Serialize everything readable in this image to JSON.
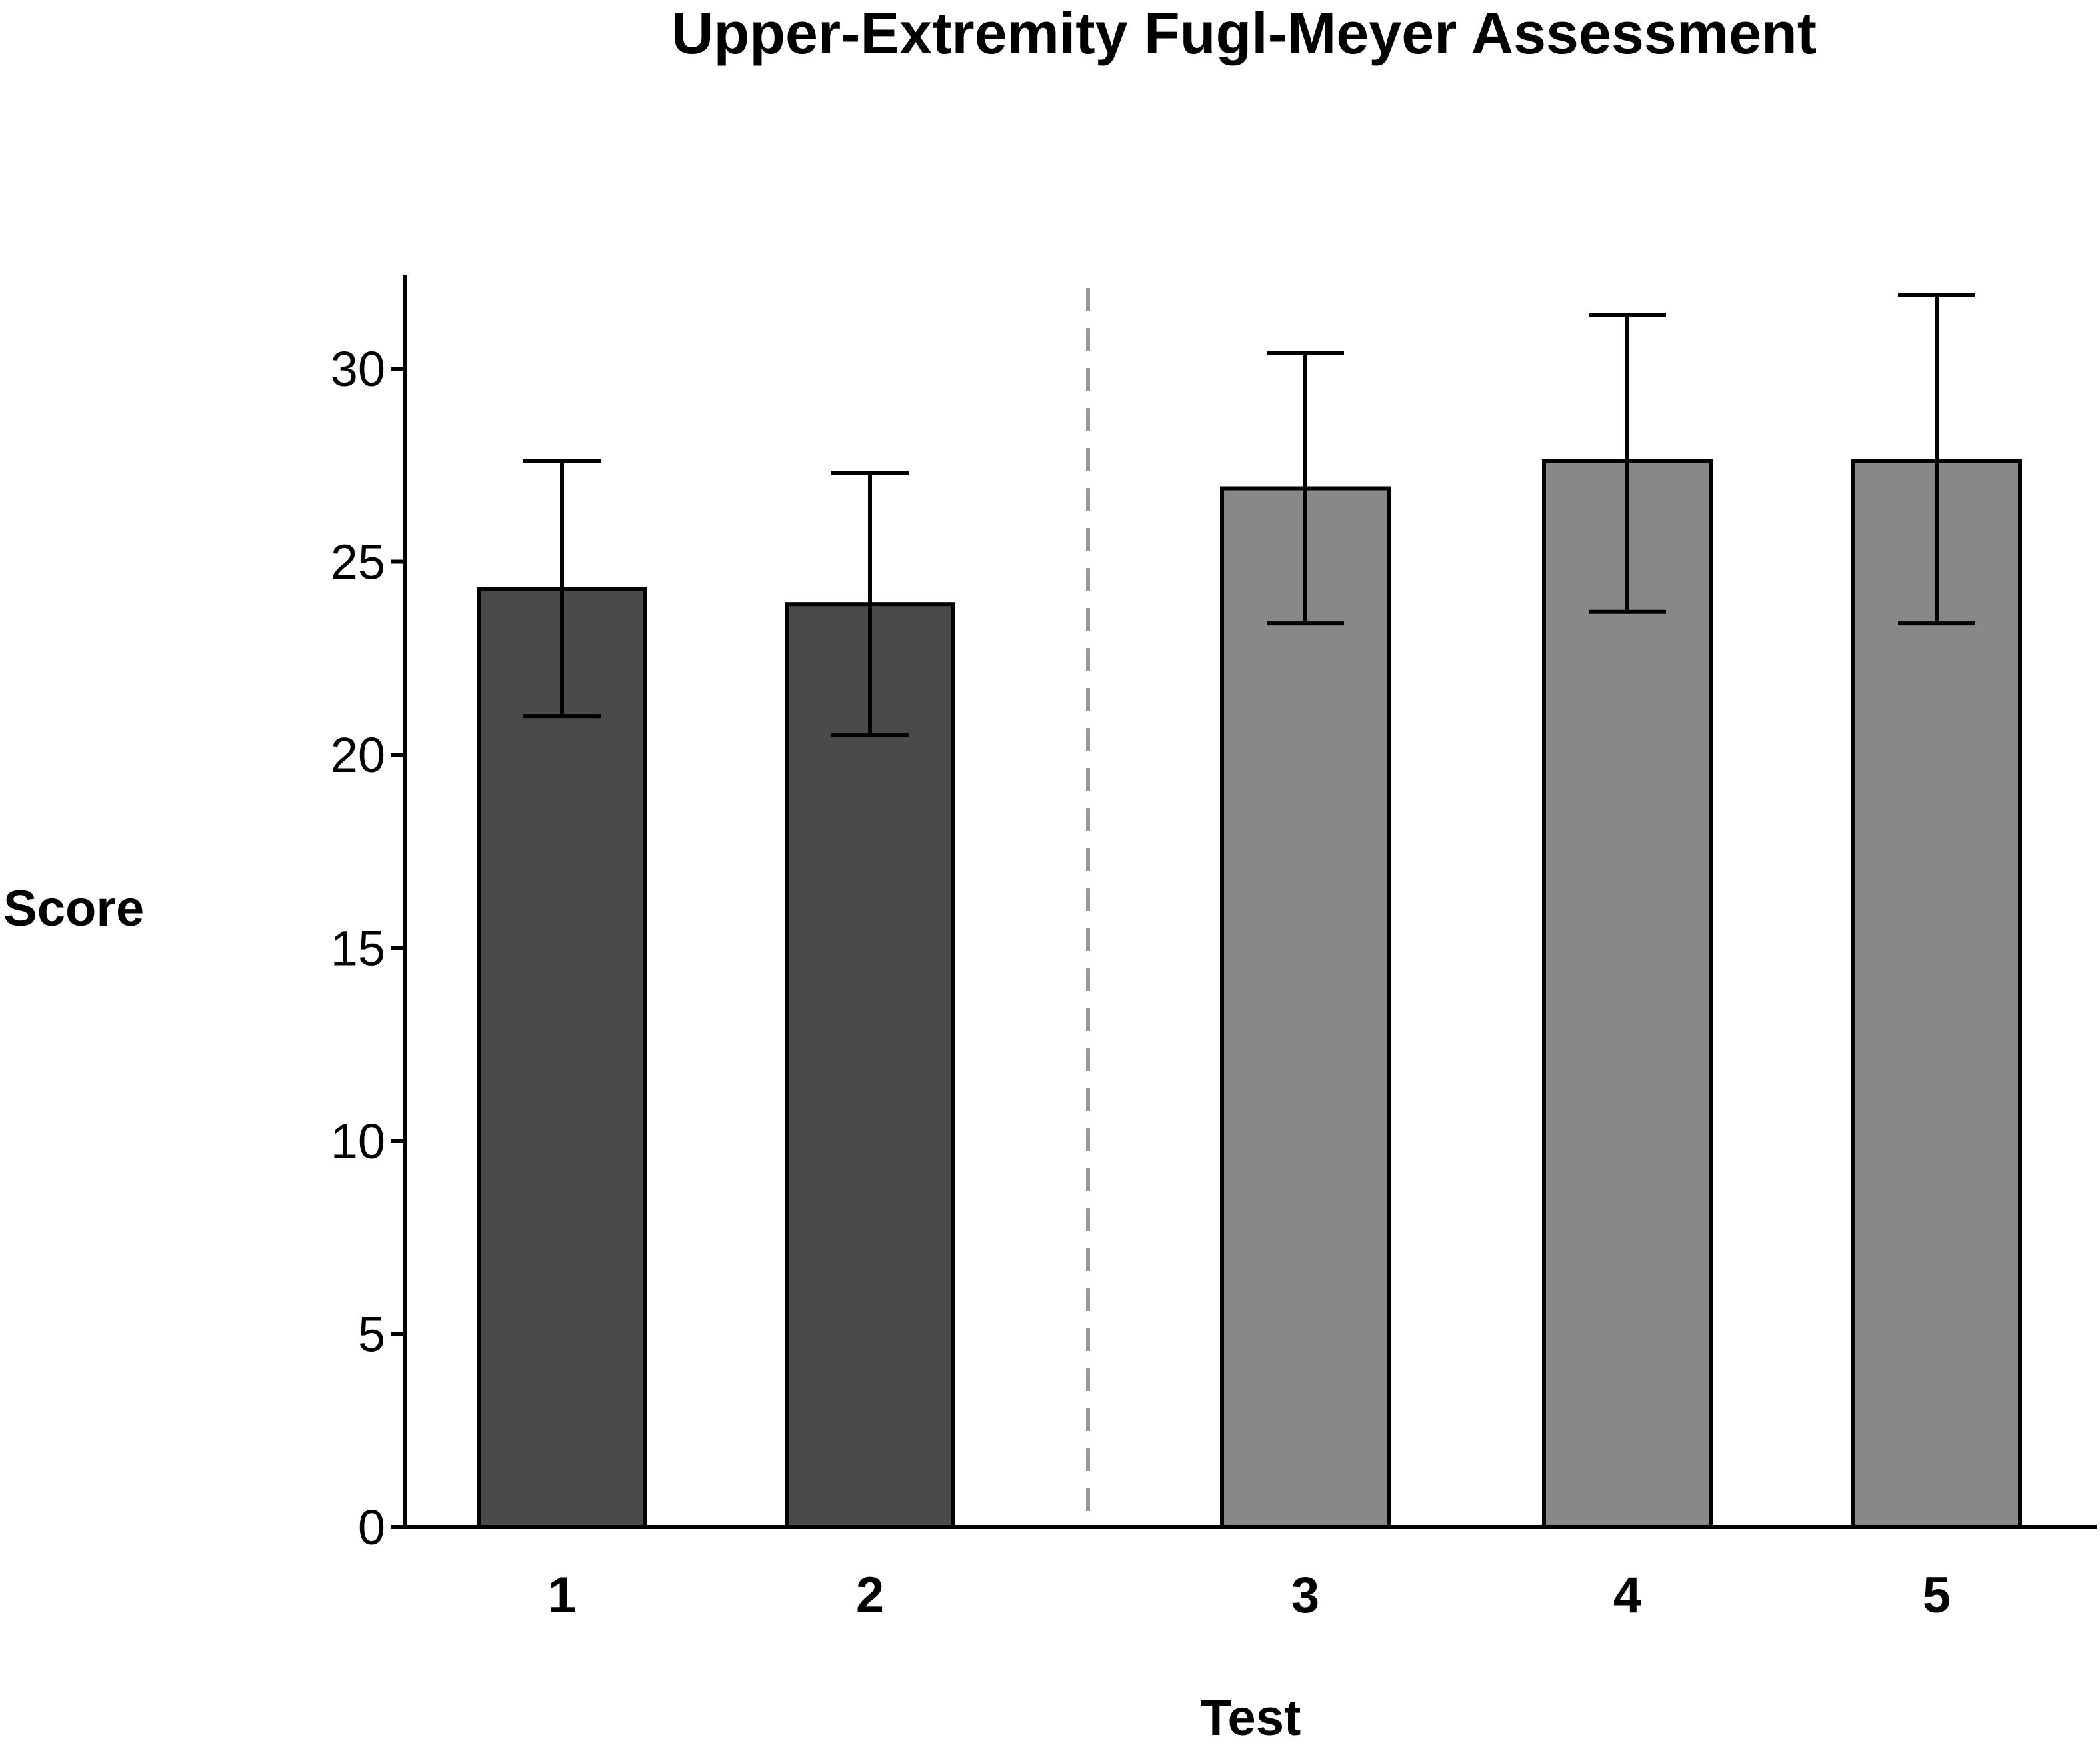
{
  "chart_data": {
    "type": "bar",
    "title": "Upper-Extremity Fugl-Meyer Assessment",
    "xlabel": "Test",
    "ylabel": "Score",
    "categories": [
      "1",
      "2",
      "3",
      "4",
      "5"
    ],
    "values": [
      24.3,
      23.9,
      26.9,
      27.6,
      27.6
    ],
    "error_lower": [
      21.0,
      20.5,
      23.4,
      23.7,
      23.4
    ],
    "error_upper": [
      27.6,
      27.3,
      30.4,
      31.4,
      31.9
    ],
    "ylim": [
      0,
      32.3
    ],
    "yticks": [
      0,
      5,
      10,
      15,
      20,
      25,
      30
    ],
    "bar_colors": [
      "#4a4a4a",
      "#4a4a4a",
      "#888888",
      "#888888",
      "#888888"
    ],
    "bar_edge_color": "#000000",
    "separator_color": "#999999",
    "grid": false,
    "legend": "none"
  }
}
